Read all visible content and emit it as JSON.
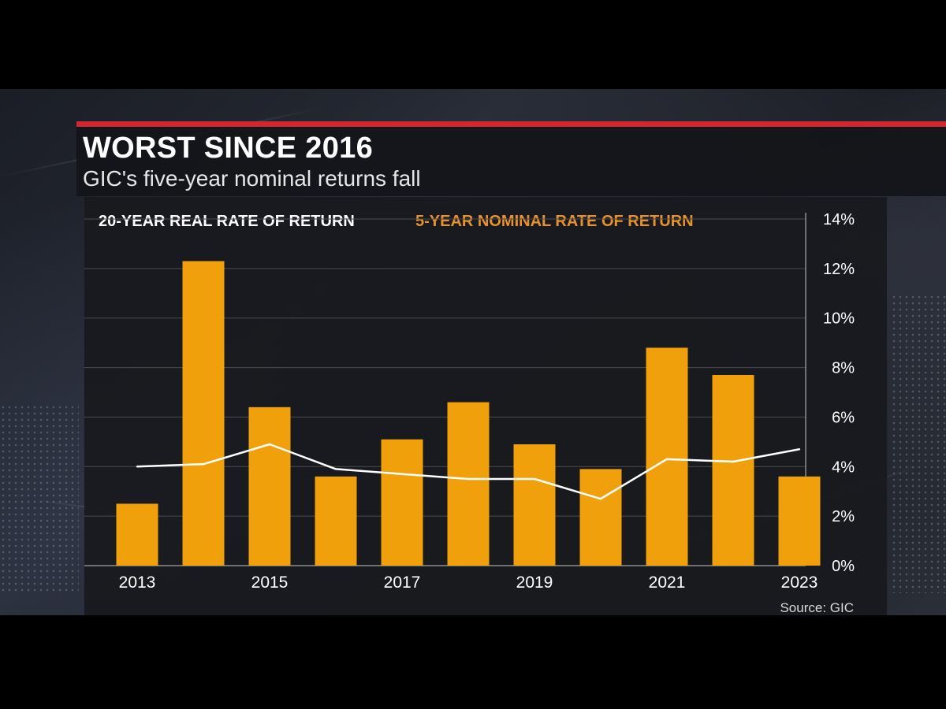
{
  "header": {
    "title": "WORST SINCE 2016",
    "subtitle": "GIC's five-year nominal returns fall"
  },
  "legend": {
    "line_label": "20-YEAR REAL RATE OF RETURN",
    "bar_label": "5-YEAR NOMINAL RATE OF RETURN"
  },
  "source": "Source: GIC",
  "colors": {
    "accent_red": "#d3262f",
    "bar": "#f0a00a",
    "line": "#ffffff",
    "bar_legend_text": "#e8922c"
  },
  "chart_data": {
    "type": "bar",
    "title": "WORST SINCE 2016",
    "subtitle": "GIC's five-year nominal returns fall",
    "x": [
      2013,
      2014,
      2015,
      2016,
      2017,
      2018,
      2019,
      2020,
      2021,
      2022,
      2023
    ],
    "x_tick_labels": [
      "2013",
      "2015",
      "2017",
      "2019",
      "2021",
      "2023"
    ],
    "series": [
      {
        "name": "5-YEAR NOMINAL RATE OF RETURN",
        "type": "bar",
        "values": [
          2.5,
          12.3,
          6.4,
          3.6,
          5.1,
          6.6,
          4.9,
          3.9,
          8.8,
          7.7,
          3.6
        ]
      },
      {
        "name": "20-YEAR REAL RATE OF RETURN",
        "type": "line",
        "values": [
          4.0,
          4.1,
          4.9,
          3.9,
          3.7,
          3.5,
          3.5,
          2.7,
          4.3,
          4.2,
          4.7
        ]
      }
    ],
    "y_tick_labels": [
      "0%",
      "2%",
      "4%",
      "6%",
      "8%",
      "10%",
      "12%",
      "14%"
    ],
    "ylim": [
      0,
      14
    ],
    "y_axis_position": "right",
    "grid": true,
    "legend_position": "top-left"
  }
}
